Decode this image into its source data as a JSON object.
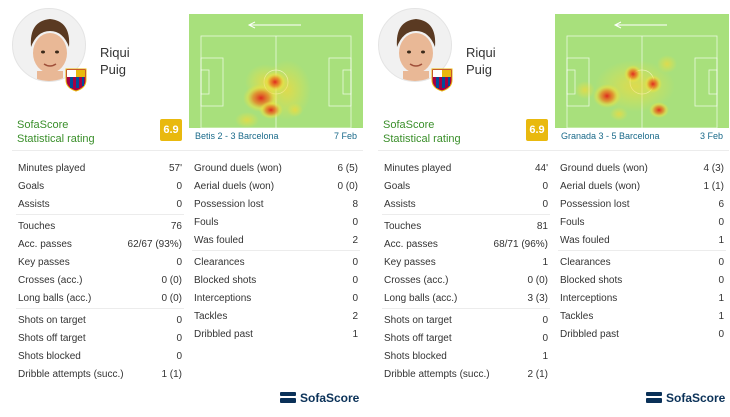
{
  "cards": [
    {
      "player_name_line1": "Riqui",
      "player_name_line2": "Puig",
      "rating_brand": "SofaScore",
      "rating_label": "Statistical rating",
      "rating_value": "6.9",
      "match_text": "Betis 2 - 3 Barcelona",
      "match_date": "7 Feb",
      "stats_col1": [
        [
          "Minutes played",
          "57'"
        ],
        [
          "Goals",
          "0"
        ],
        [
          "Assists",
          "0"
        ],
        null,
        [
          "Touches",
          "76"
        ],
        [
          "Acc. passes",
          "62/67 (93%)"
        ],
        [
          "Key passes",
          "0"
        ],
        [
          "Crosses (acc.)",
          "0 (0)"
        ],
        [
          "Long balls (acc.)",
          "0 (0)"
        ],
        null,
        [
          "Shots on target",
          "0"
        ],
        [
          "Shots off target",
          "0"
        ],
        [
          "Shots blocked",
          "0"
        ],
        [
          "Dribble attempts (succ.)",
          "1 (1)"
        ]
      ],
      "stats_col2": [
        [
          "Ground duels (won)",
          "6 (5)"
        ],
        [
          "Aerial duels (won)",
          "0 (0)"
        ],
        [
          "Possession lost",
          "8"
        ],
        [
          "Fouls",
          "0"
        ],
        [
          "Was fouled",
          "2"
        ],
        null,
        [
          "Clearances",
          "0"
        ],
        [
          "Blocked shots",
          "0"
        ],
        [
          "Interceptions",
          "0"
        ],
        [
          "Tackles",
          "2"
        ],
        [
          "Dribbled past",
          "1"
        ]
      ],
      "brand": "SofaScore"
    },
    {
      "player_name_line1": "Riqui",
      "player_name_line2": "Puig",
      "rating_brand": "SofaScore",
      "rating_label": "Statistical rating",
      "rating_value": "6.9",
      "match_text": "Granada 3 - 5 Barcelona",
      "match_date": "3 Feb",
      "stats_col1": [
        [
          "Minutes played",
          "44'"
        ],
        [
          "Goals",
          "0"
        ],
        [
          "Assists",
          "0"
        ],
        null,
        [
          "Touches",
          "81"
        ],
        [
          "Acc. passes",
          "68/71 (96%)"
        ],
        [
          "Key passes",
          "1"
        ],
        [
          "Crosses (acc.)",
          "0 (0)"
        ],
        [
          "Long balls (acc.)",
          "3 (3)"
        ],
        null,
        [
          "Shots on target",
          "0"
        ],
        [
          "Shots off target",
          "0"
        ],
        [
          "Shots blocked",
          "1"
        ],
        [
          "Dribble attempts (succ.)",
          "2 (1)"
        ]
      ],
      "stats_col2": [
        [
          "Ground duels (won)",
          "4 (3)"
        ],
        [
          "Aerial duels (won)",
          "1 (1)"
        ],
        [
          "Possession lost",
          "6"
        ],
        [
          "Fouls",
          "0"
        ],
        [
          "Was fouled",
          "1"
        ],
        null,
        [
          "Clearances",
          "0"
        ],
        [
          "Blocked shots",
          "0"
        ],
        [
          "Interceptions",
          "1"
        ],
        [
          "Tackles",
          "1"
        ],
        [
          "Dribbled past",
          "0"
        ]
      ],
      "brand": "SofaScore"
    }
  ],
  "colors": {
    "pitch": "#a8e07c",
    "rating_badge": "#e9b90e",
    "rating_text": "#3a8f2a",
    "brand": "#0a3158"
  }
}
